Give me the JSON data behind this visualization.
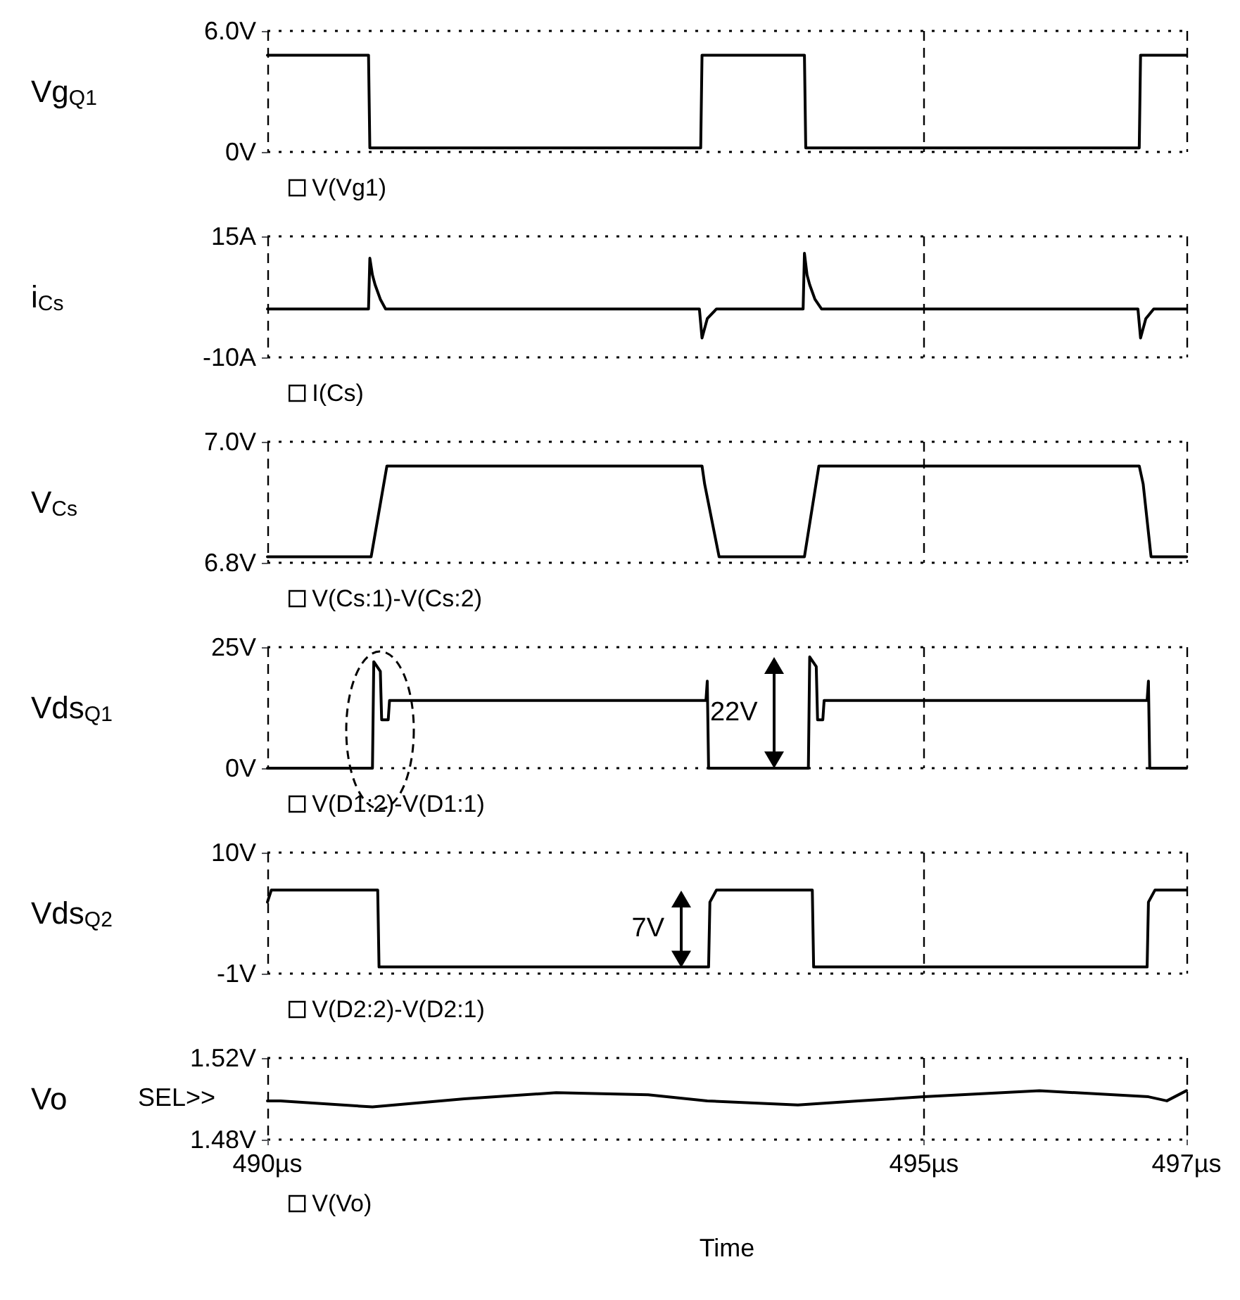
{
  "chart_data": [
    {
      "type": "line",
      "ylabel": "Vg$_{Q1}$",
      "xlim": [
        490,
        497
      ],
      "xticks": [
        490,
        495,
        497
      ],
      "ylim": [
        0,
        6
      ],
      "yticks": [
        {
          "value": 6,
          "label": "6.0V"
        },
        {
          "value": 0,
          "label": "0V"
        }
      ],
      "tick_labels": "y",
      "grid": true,
      "legend": "bottom left",
      "marker": "none",
      "line_style": "solid",
      "series": [
        {
          "name": "V(Vg1)",
          "color": "#000000",
          "x": [
            490,
            490.77,
            490.78,
            493.3,
            493.31,
            494.09,
            494.1,
            496.64,
            496.65,
            497
          ],
          "values": [
            4.8,
            4.8,
            0.2,
            0.2,
            4.8,
            4.8,
            0.2,
            0.2,
            4.8,
            4.8
          ]
        }
      ]
    },
    {
      "type": "line",
      "ylabel": "i$_{Cs}$",
      "xlim": [
        490,
        497
      ],
      "xticks": [
        490,
        495,
        497
      ],
      "ylim": [
        -10,
        15
      ],
      "yticks": [
        {
          "value": 15,
          "label": "15A"
        },
        {
          "value": -10,
          "label": "-10A"
        }
      ],
      "tick_labels": "y",
      "grid": true,
      "legend": "bottom left",
      "marker": "none",
      "line_style": "solid",
      "series": [
        {
          "name": "I(Cs)",
          "color": "#000000",
          "x": [
            490,
            490.77,
            490.78,
            490.8,
            490.82,
            490.86,
            490.9,
            493.29,
            493.31,
            493.35,
            493.42,
            494.08,
            494.09,
            494.11,
            494.13,
            494.17,
            494.22,
            496.63,
            496.65,
            496.69,
            496.75,
            497
          ],
          "values": [
            0,
            0,
            10.5,
            7,
            5,
            2,
            0,
            0,
            -6,
            -2,
            0,
            0,
            11.5,
            7,
            5,
            2,
            0,
            0,
            -6,
            -2,
            0,
            0
          ]
        }
      ]
    },
    {
      "type": "line",
      "ylabel": "V$_{Cs}$",
      "xlim": [
        490,
        497
      ],
      "xticks": [
        490,
        495,
        497
      ],
      "ylim": [
        6.8,
        7.0
      ],
      "yticks": [
        {
          "value": 7.0,
          "label": "7.0V"
        },
        {
          "value": 6.8,
          "label": "6.8V"
        }
      ],
      "tick_labels": "y",
      "grid": true,
      "legend": "bottom left",
      "marker": "none",
      "line_style": "solid",
      "series": [
        {
          "name": "V(Cs:1)-V(Cs:2)",
          "color": "#000000",
          "x": [
            490,
            490.79,
            490.91,
            493.31,
            493.33,
            493.44,
            494.09,
            494.2,
            496.64,
            496.67,
            496.73,
            497
          ],
          "values": [
            6.81,
            6.81,
            6.96,
            6.96,
            6.93,
            6.81,
            6.81,
            6.96,
            6.96,
            6.93,
            6.81,
            6.81
          ]
        }
      ]
    },
    {
      "type": "line",
      "ylabel": "Vds$_{Q1}$",
      "xlim": [
        490,
        497
      ],
      "xticks": [
        490,
        495,
        497
      ],
      "ylim": [
        0,
        25
      ],
      "yticks": [
        {
          "value": 25,
          "label": "25V"
        },
        {
          "value": 0,
          "label": "0V"
        }
      ],
      "tick_labels": "y",
      "grid": true,
      "legend": "bottom left",
      "marker": "none",
      "line_style": "solid",
      "annotations": [
        {
          "text": "22V",
          "x": 494.13,
          "y": 23
        }
      ],
      "series": [
        {
          "name": "V(D1:2)-V(D1:1)",
          "color": "#000000",
          "x": [
            490,
            490.8,
            490.81,
            490.86,
            490.87,
            490.92,
            490.93,
            493.34,
            493.35,
            493.36,
            494.12,
            494.13,
            494.18,
            494.19,
            494.23,
            494.24,
            496.7,
            496.71,
            496.72,
            497
          ],
          "values": [
            0,
            0,
            22,
            20,
            10,
            10,
            14,
            14,
            18,
            0,
            0,
            23,
            21,
            10,
            10,
            14,
            14,
            18,
            0,
            0
          ]
        }
      ]
    },
    {
      "type": "line",
      "ylabel": "Vds$_{Q2}$",
      "xlim": [
        490,
        497
      ],
      "xticks": [
        490,
        495,
        497
      ],
      "ylim": [
        -1,
        10
      ],
      "yticks": [
        {
          "value": 10,
          "label": "10V"
        },
        {
          "value": -1,
          "label": "-1V"
        }
      ],
      "tick_labels": "y",
      "grid": true,
      "legend": "bottom left",
      "marker": "none",
      "line_style": "solid",
      "annotations": [
        {
          "text": "7V",
          "x": 493.42,
          "y": 6.6
        }
      ],
      "series": [
        {
          "name": "V(D2:2)-V(D2:1)",
          "color": "#000000",
          "x": [
            490,
            490.03,
            490.84,
            490.85,
            493.36,
            493.37,
            493.42,
            494.15,
            494.16,
            496.7,
            496.71,
            496.76,
            497
          ],
          "values": [
            5.5,
            6.6,
            6.6,
            -0.4,
            -0.4,
            5.5,
            6.6,
            6.6,
            -0.4,
            -0.4,
            5.5,
            6.6,
            6.6
          ]
        }
      ]
    },
    {
      "type": "line",
      "ylabel": "Vo",
      "xlabel": "Time",
      "xlim": [
        490,
        497
      ],
      "xticks": [
        {
          "value": 490,
          "label": "490µs"
        },
        {
          "value": 495,
          "label": "495µs"
        },
        {
          "value": 497,
          "label": "497µs"
        }
      ],
      "ylim": [
        1.48,
        1.52
      ],
      "yticks": [
        {
          "value": 1.52,
          "label": "1.52V"
        },
        {
          "value": 1.48,
          "label": "1.48V"
        }
      ],
      "grid": true,
      "legend": "bottom left",
      "marker": "none",
      "line_style": "solid",
      "annotations": [
        "SEL>>"
      ],
      "series": [
        {
          "name": "V(Vo)",
          "color": "#000000",
          "x": [
            490,
            490.1,
            490.8,
            491.5,
            492.2,
            492.9,
            493.35,
            494.04,
            494.5,
            495,
            495.88,
            496.71,
            496.85,
            497
          ],
          "values": [
            1.499,
            1.499,
            1.496,
            1.5,
            1.503,
            1.502,
            1.499,
            1.497,
            1.499,
            1.501,
            1.504,
            1.501,
            1.499,
            1.504
          ]
        }
      ]
    }
  ]
}
